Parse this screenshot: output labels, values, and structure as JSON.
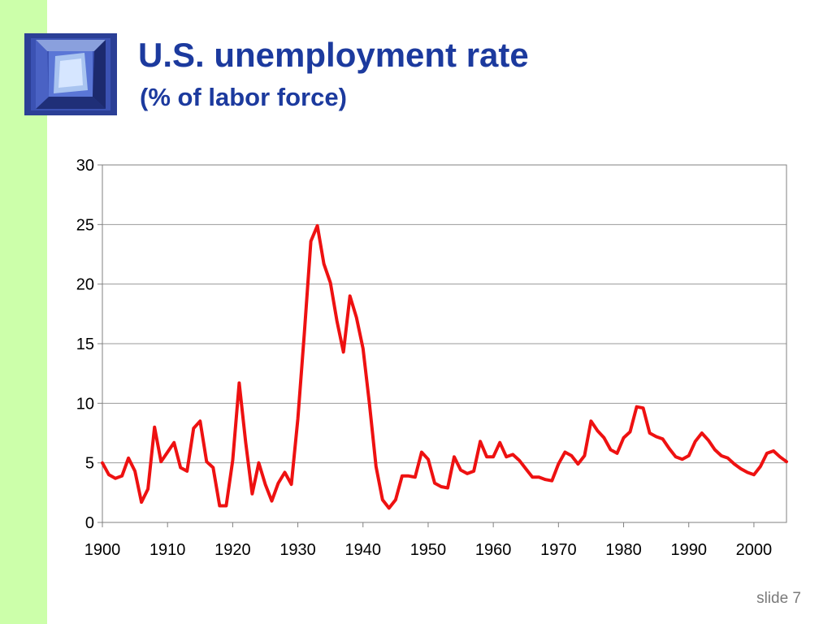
{
  "slide": {
    "title": "U.S. unemployment rate",
    "subtitle": "(% of labor force)",
    "slide_number": "slide 7",
    "colors": {
      "title": "#1c3a9e",
      "band": "#ccffaa",
      "line": "#ee1111"
    },
    "logo_icon": "window-shaft-photo-icon"
  },
  "chart_data": {
    "type": "line",
    "title": "U.S. unemployment rate",
    "subtitle": "(% of labor force)",
    "xlabel": "",
    "ylabel": "",
    "xlim": [
      1900,
      2005
    ],
    "ylim": [
      0,
      30
    ],
    "grid": true,
    "legend": "none",
    "x_ticks": [
      1900,
      1910,
      1920,
      1930,
      1940,
      1950,
      1960,
      1970,
      1980,
      1990,
      2000
    ],
    "y_ticks": [
      0,
      5,
      10,
      15,
      20,
      25,
      30
    ],
    "series": [
      {
        "color": "#ee1111",
        "x": [
          1900,
          1901,
          1902,
          1903,
          1904,
          1905,
          1906,
          1907,
          1908,
          1909,
          1910,
          1911,
          1912,
          1913,
          1914,
          1915,
          1916,
          1917,
          1918,
          1919,
          1920,
          1921,
          1922,
          1923,
          1924,
          1925,
          1926,
          1927,
          1928,
          1929,
          1930,
          1931,
          1932,
          1933,
          1934,
          1935,
          1936,
          1937,
          1938,
          1939,
          1940,
          1941,
          1942,
          1943,
          1944,
          1945,
          1946,
          1947,
          1948,
          1949,
          1950,
          1951,
          1952,
          1953,
          1954,
          1955,
          1956,
          1957,
          1958,
          1959,
          1960,
          1961,
          1962,
          1963,
          1964,
          1965,
          1966,
          1967,
          1968,
          1969,
          1970,
          1971,
          1972,
          1973,
          1974,
          1975,
          1976,
          1977,
          1978,
          1979,
          1980,
          1981,
          1982,
          1983,
          1984,
          1985,
          1986,
          1987,
          1988,
          1989,
          1990,
          1991,
          1992,
          1993,
          1994,
          1995,
          1996,
          1997,
          1998,
          1999,
          2000,
          2001,
          2002,
          2003,
          2004,
          2005
        ],
        "values": [
          5.0,
          4.0,
          3.7,
          3.9,
          5.4,
          4.3,
          1.7,
          2.8,
          8.0,
          5.1,
          5.9,
          6.7,
          4.6,
          4.3,
          7.9,
          8.5,
          5.1,
          4.6,
          1.4,
          1.4,
          5.2,
          11.7,
          6.7,
          2.4,
          5.0,
          3.2,
          1.8,
          3.3,
          4.2,
          3.2,
          8.7,
          15.9,
          23.6,
          24.9,
          21.7,
          20.1,
          16.9,
          14.3,
          19.0,
          17.2,
          14.6,
          9.9,
          4.7,
          1.9,
          1.2,
          1.9,
          3.9,
          3.9,
          3.8,
          5.9,
          5.3,
          3.3,
          3.0,
          2.9,
          5.5,
          4.4,
          4.1,
          4.3,
          6.8,
          5.5,
          5.5,
          6.7,
          5.5,
          5.7,
          5.2,
          4.5,
          3.8,
          3.8,
          3.6,
          3.5,
          4.9,
          5.9,
          5.6,
          4.9,
          5.6,
          8.5,
          7.7,
          7.1,
          6.1,
          5.8,
          7.1,
          7.6,
          9.7,
          9.6,
          7.5,
          7.2,
          7.0,
          6.2,
          5.5,
          5.3,
          5.6,
          6.8,
          7.5,
          6.9,
          6.1,
          5.6,
          5.4,
          4.9,
          4.5,
          4.2,
          4.0,
          4.7,
          5.8,
          6.0,
          5.5,
          5.1
        ]
      }
    ]
  }
}
